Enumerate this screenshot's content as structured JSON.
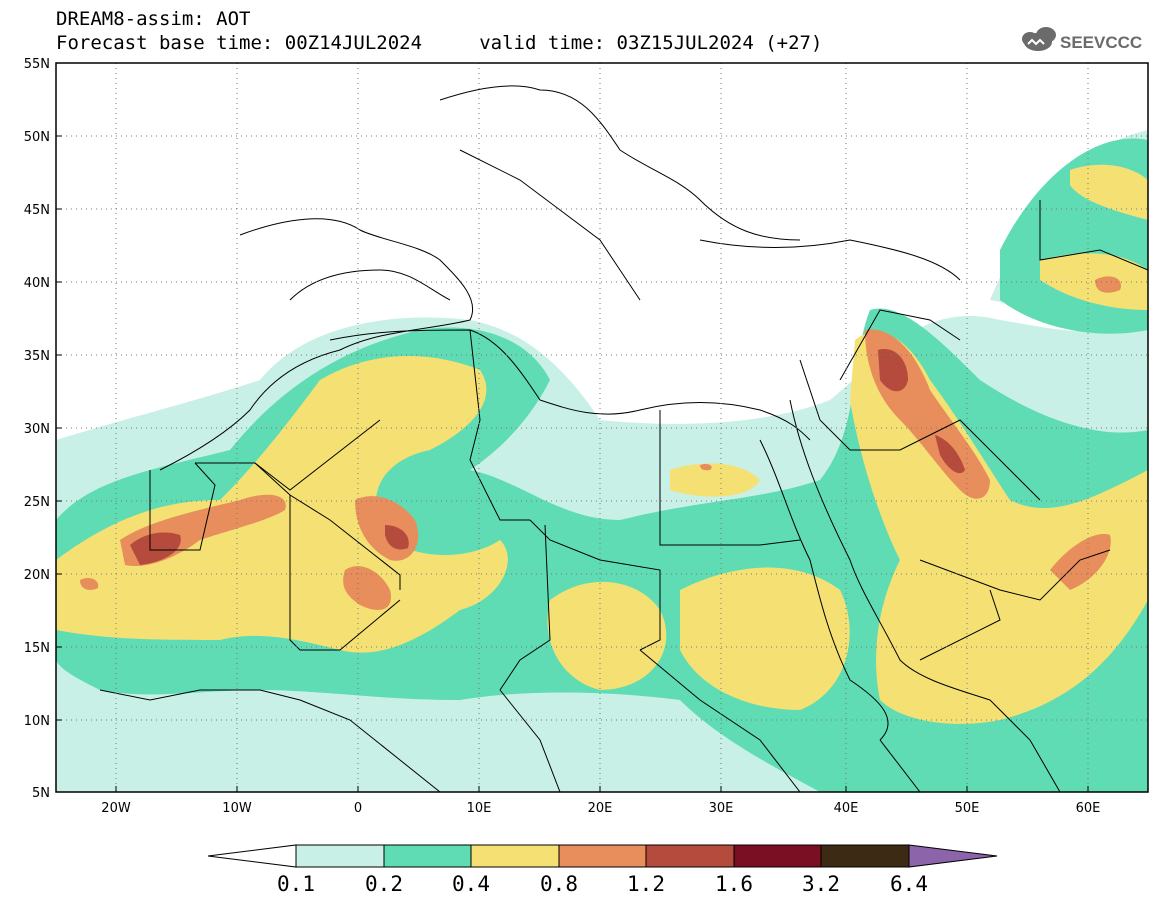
{
  "title_line1": "DREAM8-assim: AOT",
  "title_line2": "Forecast base time: 00Z14JUL2024     valid time: 03Z15JUL2024 (+27)",
  "logo_text": "SEEVCCC",
  "axes": {
    "lon_ticks": [
      "20W",
      "10W",
      "0",
      "10E",
      "20E",
      "30E",
      "40E",
      "50E",
      "60E"
    ],
    "lat_ticks": [
      "55N",
      "50N",
      "45N",
      "40N",
      "35N",
      "30N",
      "25N",
      "20N",
      "15N",
      "10N",
      "5N"
    ]
  },
  "colorbar": {
    "labels": [
      "0.1",
      "0.2",
      "0.4",
      "0.8",
      "1.2",
      "1.6",
      "3.2",
      "6.4"
    ],
    "colors": {
      "below": "#ffffff",
      "c1": "#c8f0e6",
      "c2": "#5fdcb4",
      "c3": "#f5e173",
      "c4": "#e88d5c",
      "c5": "#b44b3c",
      "c6": "#7a0f24",
      "c7": "#3c2a14",
      "above": "#8c64aa"
    }
  }
}
